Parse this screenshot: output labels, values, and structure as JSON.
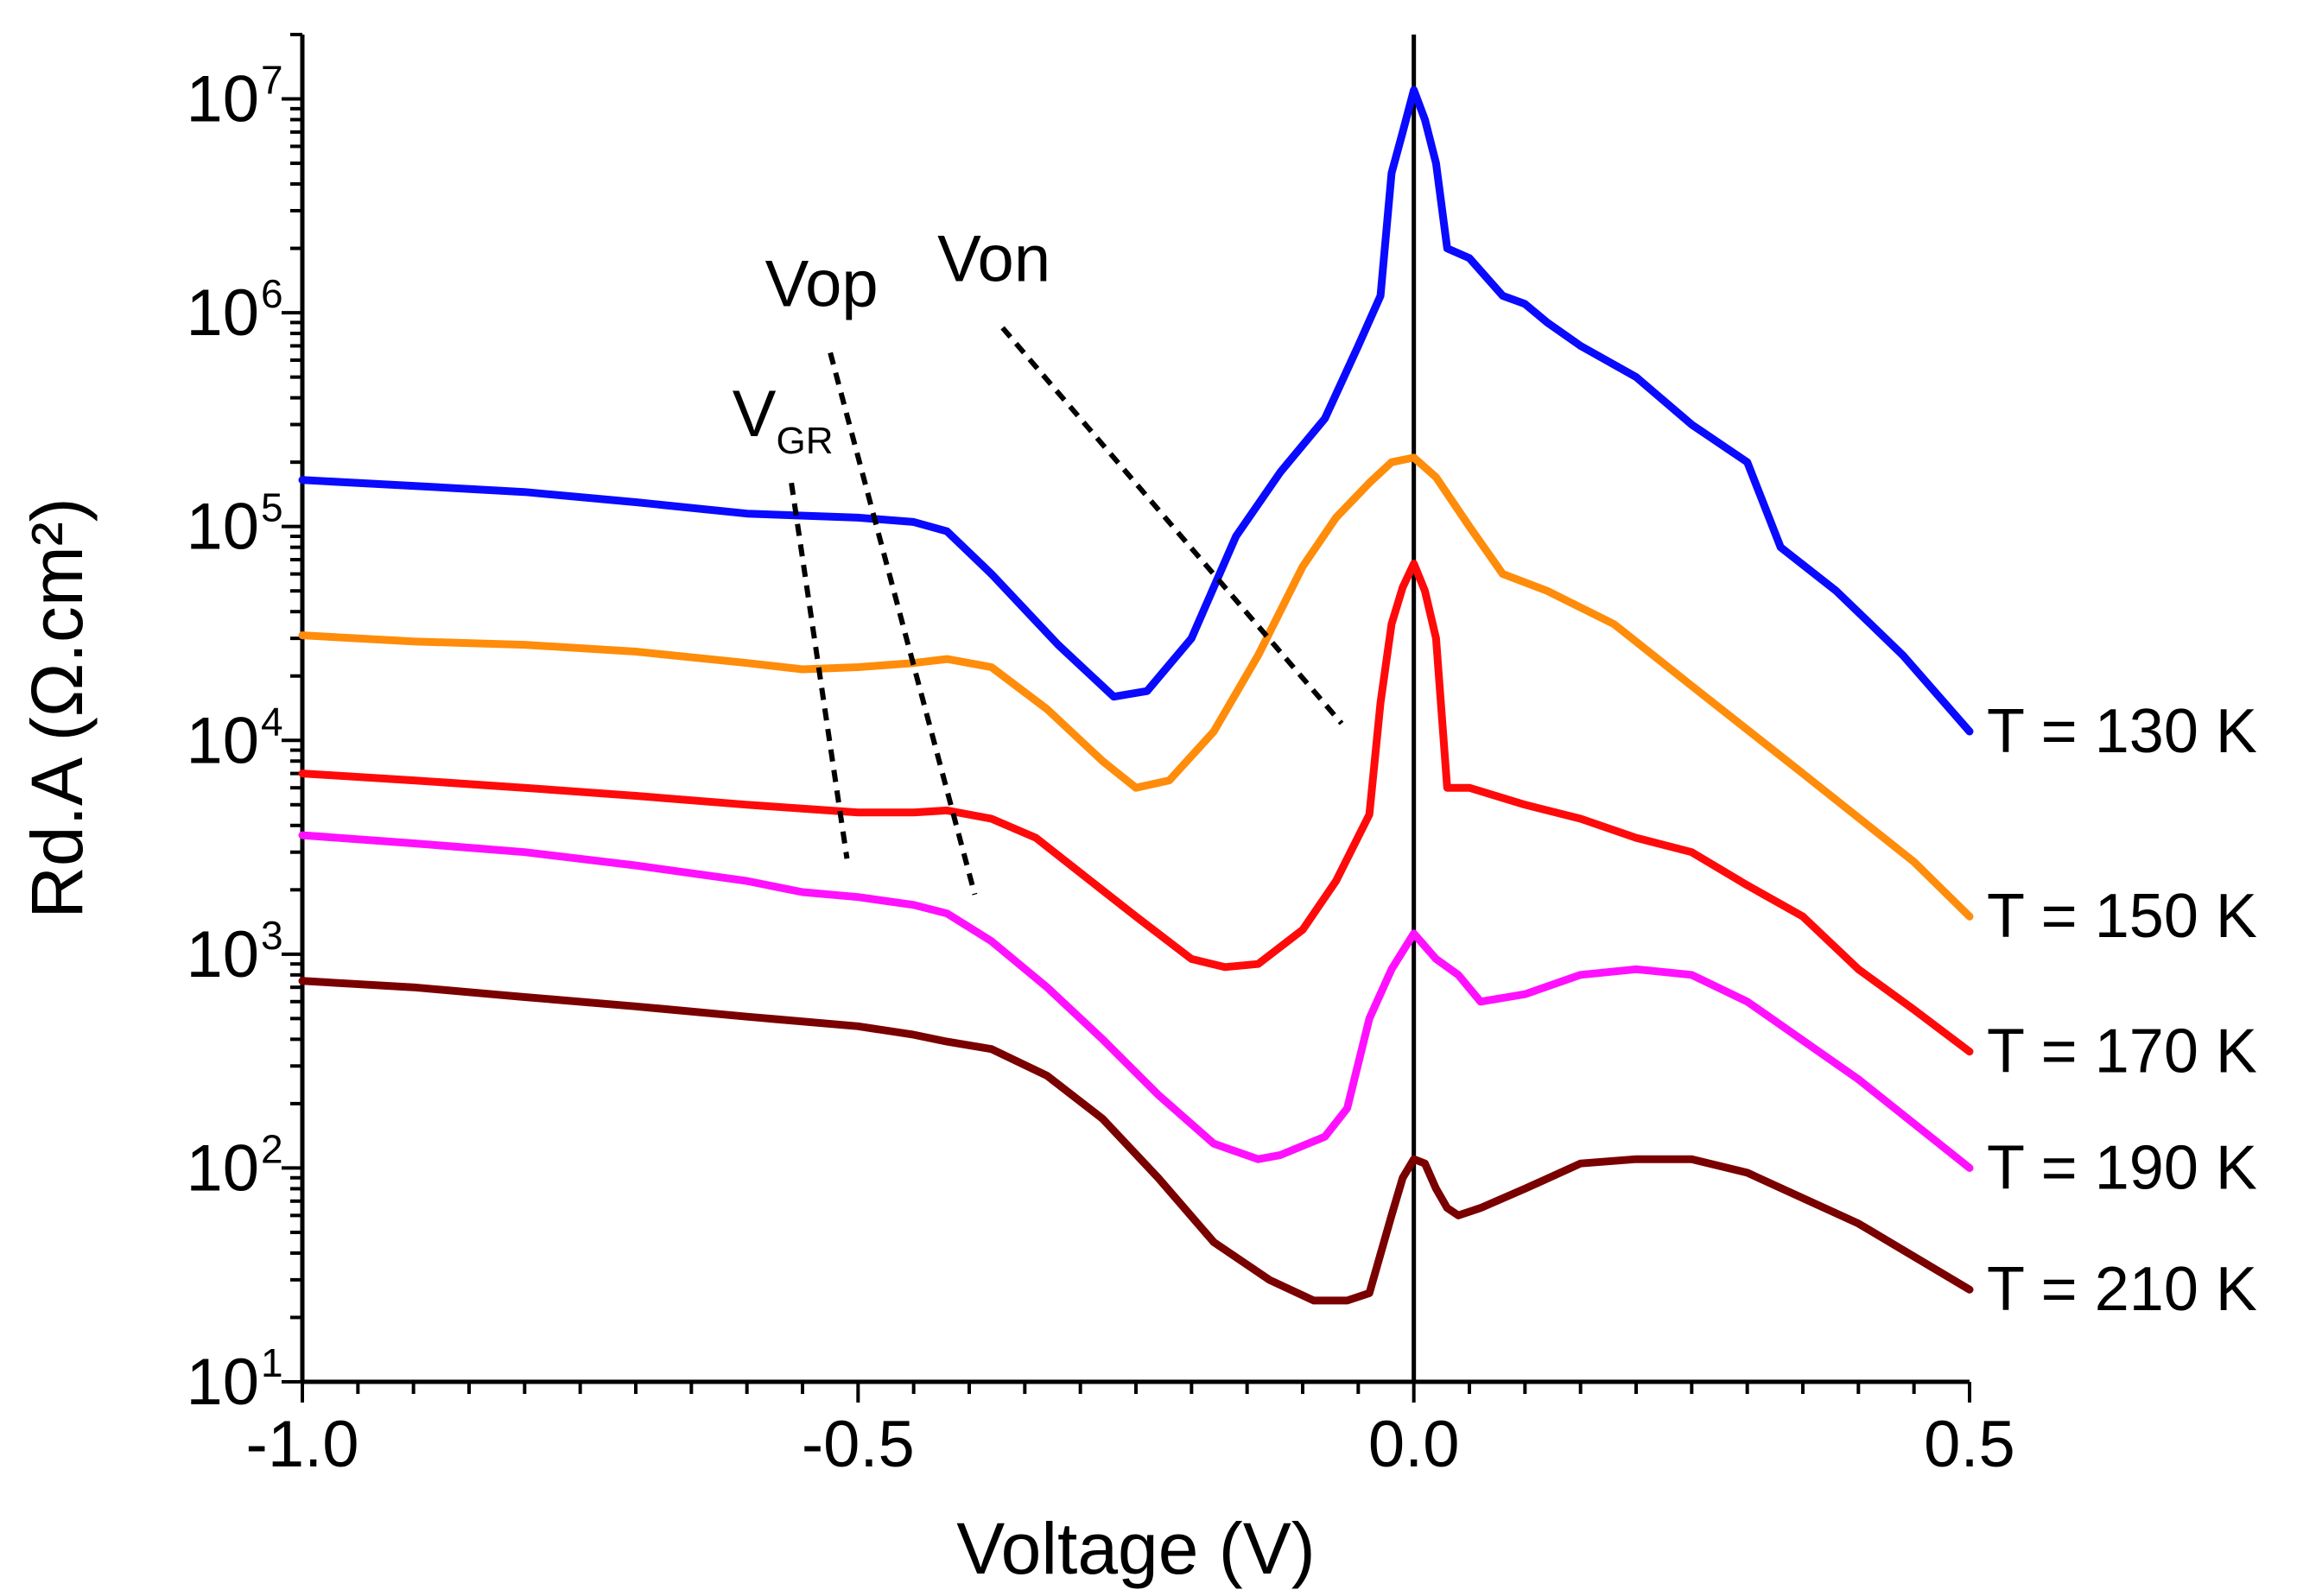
{
  "chart_data": {
    "type": "line",
    "title": "",
    "xlabel": "Voltage (V)",
    "ylabel": "Rd.A (Ω.cm²)",
    "xlim": [
      -1.0,
      0.5
    ],
    "ylim": [
      10,
      20000000
    ],
    "yscale": "log",
    "x_ticks": [
      "-1.0",
      "-0.5",
      "0.0",
      "0.5"
    ],
    "x_tick_values": [
      -1.0,
      -0.5,
      0.0,
      0.5
    ],
    "y_ticks": [
      {
        "base": "10",
        "exp": "1",
        "value": 10
      },
      {
        "base": "10",
        "exp": "2",
        "value": 100
      },
      {
        "base": "10",
        "exp": "3",
        "value": 1000
      },
      {
        "base": "10",
        "exp": "4",
        "value": 10000
      },
      {
        "base": "10",
        "exp": "5",
        "value": 100000
      },
      {
        "base": "10",
        "exp": "6",
        "value": 1000000
      },
      {
        "base": "10",
        "exp": "7",
        "value": 10000000
      }
    ],
    "vertical_line_at": 0.0,
    "series": [
      {
        "name": "T = 130 K",
        "color": "#0a0aff",
        "x": [
          -1.0,
          -0.9,
          -0.8,
          -0.7,
          -0.6,
          -0.5,
          -0.45,
          -0.42,
          -0.38,
          -0.32,
          -0.27,
          -0.24,
          -0.2,
          -0.16,
          -0.12,
          -0.08,
          -0.05,
          -0.03,
          -0.02,
          -0.01,
          0.0,
          0.01,
          0.02,
          0.03,
          0.05,
          0.08,
          0.1,
          0.12,
          0.15,
          0.2,
          0.25,
          0.3,
          0.33,
          0.38,
          0.44,
          0.5
        ],
        "y": [
          165000,
          155000,
          145000,
          130000,
          115000,
          110000,
          105000,
          95000,
          60000,
          28000,
          16000,
          17000,
          30000,
          90000,
          180000,
          320000,
          700000,
          1200000,
          4500000,
          7000000,
          11000000,
          8000000,
          5000000,
          2000000,
          1800000,
          1200000,
          1100000,
          900000,
          700000,
          500000,
          300000,
          200000,
          80000,
          50000,
          25000,
          11000
        ]
      },
      {
        "name": "T = 150 K",
        "color": "#ff8c0a",
        "x": [
          -1.0,
          -0.9,
          -0.8,
          -0.7,
          -0.6,
          -0.55,
          -0.5,
          -0.45,
          -0.42,
          -0.38,
          -0.33,
          -0.28,
          -0.25,
          -0.22,
          -0.18,
          -0.14,
          -0.1,
          -0.07,
          -0.04,
          -0.02,
          0.0,
          0.02,
          0.05,
          0.08,
          0.12,
          0.18,
          0.25,
          0.35,
          0.45,
          0.5
        ],
        "y": [
          31000,
          29000,
          28000,
          26000,
          23000,
          21500,
          22000,
          23000,
          24000,
          22000,
          14000,
          8000,
          6000,
          6500,
          11000,
          25000,
          65000,
          110000,
          160000,
          200000,
          210000,
          170000,
          100000,
          60000,
          50000,
          35000,
          18000,
          7000,
          2700,
          1500
        ]
      },
      {
        "name": "T = 170 K",
        "color": "#ff0a0a",
        "x": [
          -1.0,
          -0.9,
          -0.8,
          -0.7,
          -0.6,
          -0.5,
          -0.45,
          -0.42,
          -0.38,
          -0.34,
          -0.3,
          -0.25,
          -0.2,
          -0.17,
          -0.14,
          -0.1,
          -0.07,
          -0.04,
          -0.03,
          -0.02,
          -0.01,
          0.0,
          0.01,
          0.02,
          0.03,
          0.05,
          0.1,
          0.15,
          0.2,
          0.25,
          0.3,
          0.35,
          0.4,
          0.45,
          0.5
        ],
        "y": [
          7000,
          6500,
          6000,
          5500,
          5000,
          4600,
          4600,
          4700,
          4300,
          3500,
          2400,
          1500,
          950,
          870,
          900,
          1300,
          2200,
          4500,
          15000,
          35000,
          52000,
          67000,
          50000,
          30000,
          6000,
          6000,
          5000,
          4300,
          3500,
          3000,
          2100,
          1500,
          850,
          550,
          350
        ]
      },
      {
        "name": "T = 190 K",
        "color": "#ff10ff",
        "x": [
          -1.0,
          -0.9,
          -0.8,
          -0.7,
          -0.6,
          -0.55,
          -0.5,
          -0.45,
          -0.42,
          -0.38,
          -0.33,
          -0.28,
          -0.23,
          -0.18,
          -0.14,
          -0.12,
          -0.08,
          -0.06,
          -0.04,
          -0.02,
          0.0,
          0.02,
          0.04,
          0.06,
          0.1,
          0.15,
          0.2,
          0.25,
          0.3,
          0.4,
          0.5
        ],
        "y": [
          3600,
          3300,
          3000,
          2600,
          2200,
          1950,
          1850,
          1700,
          1550,
          1150,
          700,
          400,
          220,
          130,
          110,
          115,
          140,
          190,
          500,
          850,
          1250,
          950,
          800,
          600,
          650,
          800,
          850,
          800,
          600,
          260,
          100
        ]
      },
      {
        "name": "T = 210 K",
        "color": "#7a0000",
        "x": [
          -1.0,
          -0.9,
          -0.8,
          -0.7,
          -0.6,
          -0.5,
          -0.45,
          -0.42,
          -0.38,
          -0.33,
          -0.28,
          -0.23,
          -0.18,
          -0.13,
          -0.09,
          -0.06,
          -0.04,
          -0.02,
          -0.01,
          0.0,
          0.01,
          0.02,
          0.03,
          0.04,
          0.06,
          0.1,
          0.15,
          0.2,
          0.25,
          0.3,
          0.4,
          0.5
        ],
        "y": [
          750,
          700,
          630,
          570,
          510,
          460,
          420,
          390,
          360,
          270,
          170,
          90,
          45,
          30,
          24,
          24,
          26,
          60,
          90,
          110,
          105,
          80,
          65,
          60,
          65,
          80,
          105,
          110,
          110,
          95,
          55,
          27
        ]
      }
    ],
    "annotations": [
      {
        "label": "V",
        "sub": "GR",
        "line_x": [
          -0.56,
          -0.51
        ],
        "line_y": [
          160000,
          2800
        ]
      },
      {
        "label": "Vop",
        "sub": "",
        "line_x": [
          -0.525,
          -0.395
        ],
        "line_y": [
          650000,
          1900
        ]
      },
      {
        "label": "Von",
        "sub": "",
        "line_x": [
          -0.37,
          -0.065
        ],
        "line_y": [
          850000,
          12000
        ]
      }
    ]
  }
}
